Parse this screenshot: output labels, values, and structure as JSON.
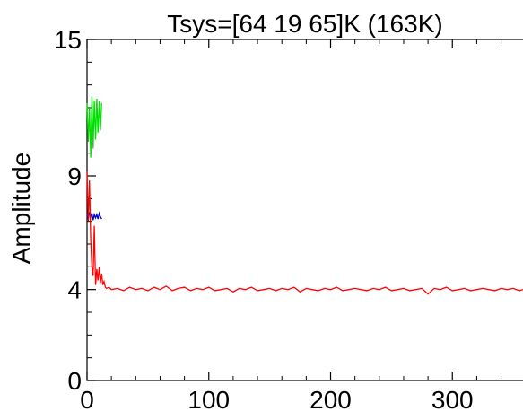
{
  "chart_data": {
    "type": "line",
    "title": "Tsys=[64 19 65]K (163K)",
    "xlabel": "",
    "ylabel": "Amplitude",
    "xlim": [
      0,
      358
    ],
    "ylim": [
      0,
      15
    ],
    "x_ticks": [
      0,
      100,
      200,
      300
    ],
    "y_ticks": [
      0,
      4,
      9,
      15
    ],
    "grid": false,
    "series": [
      {
        "color": "#00e000",
        "x": [
          0,
          1,
          2,
          3,
          4,
          5,
          6,
          7,
          8,
          9,
          10,
          11,
          12
        ],
        "y": [
          12.2,
          10.5,
          12.0,
          9.8,
          12.5,
          10.2,
          12.3,
          10.6,
          12.4,
          10.9,
          12.3,
          11.0,
          12.2
        ]
      },
      {
        "color": "#0000cc",
        "x": [
          0,
          1,
          2,
          3,
          4,
          5,
          6,
          7,
          8,
          9,
          10,
          11,
          12
        ],
        "y": [
          7.3,
          7.1,
          7.4,
          7.2,
          7.35,
          7.05,
          7.3,
          7.15,
          7.3,
          7.1,
          7.35,
          7.2,
          7.1
        ]
      },
      {
        "color": "#ff0000",
        "x": [
          0,
          1,
          2,
          3,
          4,
          5,
          6,
          7,
          8,
          9,
          10,
          11,
          12,
          13,
          14,
          15,
          16,
          18,
          20,
          25,
          30,
          35,
          40,
          45,
          50,
          55,
          60,
          65,
          70,
          75,
          80,
          85,
          90,
          95,
          100,
          105,
          110,
          115,
          120,
          125,
          130,
          135,
          140,
          145,
          150,
          155,
          160,
          165,
          170,
          175,
          180,
          185,
          190,
          195,
          200,
          205,
          210,
          215,
          220,
          225,
          230,
          235,
          240,
          245,
          250,
          255,
          260,
          265,
          270,
          275,
          280,
          285,
          290,
          295,
          300,
          305,
          310,
          315,
          320,
          325,
          330,
          335,
          340,
          345,
          350,
          355,
          358
        ],
        "y": [
          9.2,
          7.0,
          8.8,
          6.2,
          5.0,
          4.6,
          6.8,
          4.2,
          4.9,
          4.4,
          5.0,
          4.3,
          4.7,
          4.2,
          4.35,
          4.1,
          4.05,
          4.1,
          4.0,
          4.05,
          3.95,
          4.1,
          4.0,
          4.05,
          3.95,
          4.1,
          4.0,
          4.15,
          3.95,
          4.05,
          4.1,
          3.95,
          4.05,
          4.0,
          4.1,
          3.95,
          4.0,
          4.05,
          3.9,
          4.05,
          4.0,
          4.1,
          3.95,
          4.0,
          4.05,
          3.95,
          4.05,
          4.0,
          4.1,
          3.9,
          4.05,
          4.0,
          3.95,
          4.05,
          4.0,
          4.1,
          3.95,
          4.0,
          4.05,
          4.0,
          3.95,
          4.05,
          4.0,
          4.1,
          3.95,
          4.0,
          4.05,
          3.95,
          4.0,
          4.05,
          3.8,
          4.05,
          4.0,
          4.1,
          3.95,
          4.0,
          4.05,
          3.95,
          4.0,
          4.05,
          4.0,
          3.95,
          4.05,
          4.0,
          4.05,
          3.95,
          4.0
        ]
      }
    ]
  }
}
